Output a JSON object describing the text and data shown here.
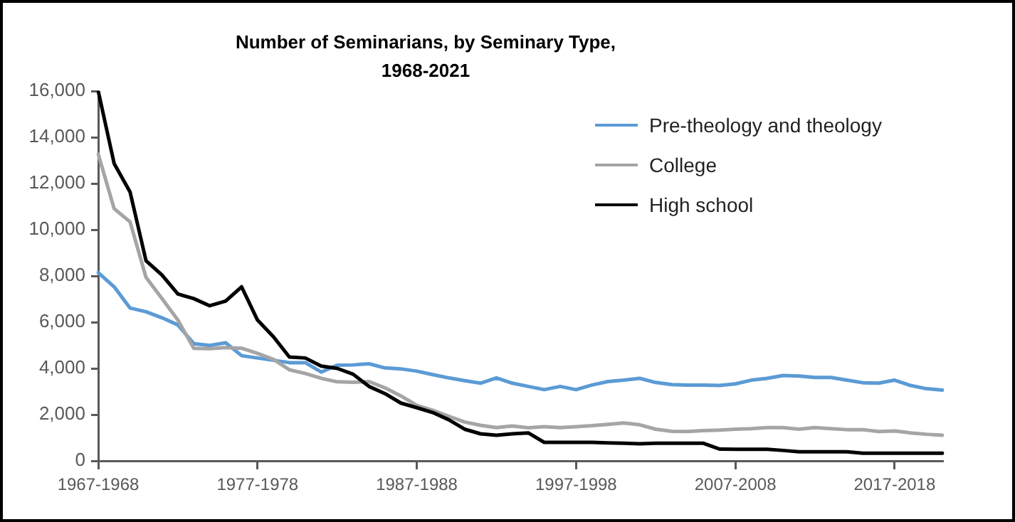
{
  "chart_data": {
    "type": "line",
    "title": "Number of Seminarians, by Seminary Type, 1968-2021",
    "categories": [
      "1967-1968",
      null,
      null,
      null,
      null,
      null,
      null,
      null,
      null,
      null,
      "1977-1978",
      null,
      null,
      null,
      null,
      null,
      null,
      null,
      null,
      null,
      "1987-1988",
      null,
      null,
      null,
      null,
      null,
      null,
      null,
      null,
      null,
      "1997-1998",
      null,
      null,
      null,
      null,
      null,
      null,
      null,
      null,
      null,
      "2007-2008",
      null,
      null,
      null,
      null,
      null,
      null,
      null,
      null,
      null,
      "2017-2018",
      null,
      null,
      null
    ],
    "series": [
      {
        "name": "Pre-theology and theology",
        "color": "#5b9bd5",
        "values": [
          8140,
          7530,
          6610,
          6450,
          6190,
          5880,
          5070,
          4990,
          5110,
          4550,
          4450,
          4350,
          4250,
          4250,
          3840,
          4140,
          4150,
          4200,
          4020,
          3980,
          3880,
          3730,
          3590,
          3470,
          3360,
          3590,
          3360,
          3220,
          3080,
          3220,
          3080,
          3280,
          3430,
          3490,
          3570,
          3390,
          3300,
          3280,
          3280,
          3260,
          3330,
          3490,
          3570,
          3690,
          3670,
          3610,
          3610,
          3490,
          3380,
          3360,
          3490,
          3260,
          3120,
          3060
        ]
      },
      {
        "name": "College",
        "color": "#a5a5a5",
        "values": [
          13270,
          10910,
          10340,
          7940,
          7020,
          6090,
          4870,
          4850,
          4900,
          4870,
          4650,
          4390,
          3940,
          3780,
          3570,
          3420,
          3400,
          3430,
          3160,
          2810,
          2400,
          2190,
          1930,
          1680,
          1540,
          1440,
          1510,
          1430,
          1480,
          1440,
          1480,
          1520,
          1580,
          1640,
          1560,
          1370,
          1280,
          1270,
          1310,
          1330,
          1370,
          1390,
          1440,
          1440,
          1370,
          1440,
          1390,
          1350,
          1350,
          1270,
          1290,
          1210,
          1150,
          1110
        ]
      },
      {
        "name": "High school",
        "color": "#000000",
        "values": [
          16000,
          12860,
          11630,
          8660,
          8040,
          7220,
          7020,
          6710,
          6910,
          7530,
          6090,
          5370,
          4490,
          4450,
          4100,
          4000,
          3750,
          3220,
          2910,
          2500,
          2300,
          2090,
          1780,
          1370,
          1170,
          1110,
          1170,
          1210,
          800,
          800,
          800,
          800,
          780,
          760,
          740,
          760,
          760,
          760,
          760,
          510,
          500,
          500,
          500,
          450,
          390,
          390,
          390,
          390,
          330,
          330,
          330,
          330,
          330,
          330
        ]
      }
    ],
    "ylim": [
      0,
      16000
    ],
    "yticks": [
      0,
      {
        "value": 2000,
        "label": "2,000"
      },
      {
        "value": 4000,
        "label": "4,000"
      },
      {
        "value": 6000,
        "label": "6,000"
      },
      {
        "value": 8000,
        "label": "8,000"
      },
      {
        "value": 10000,
        "label": "10,000"
      },
      {
        "value": 12000,
        "label": "12,000"
      },
      {
        "value": 14000,
        "label": "14,000"
      },
      {
        "value": 16000,
        "label": "16,000"
      }
    ],
    "grid": false,
    "legend": "top right",
    "marker": "none",
    "line_style": "solid"
  }
}
